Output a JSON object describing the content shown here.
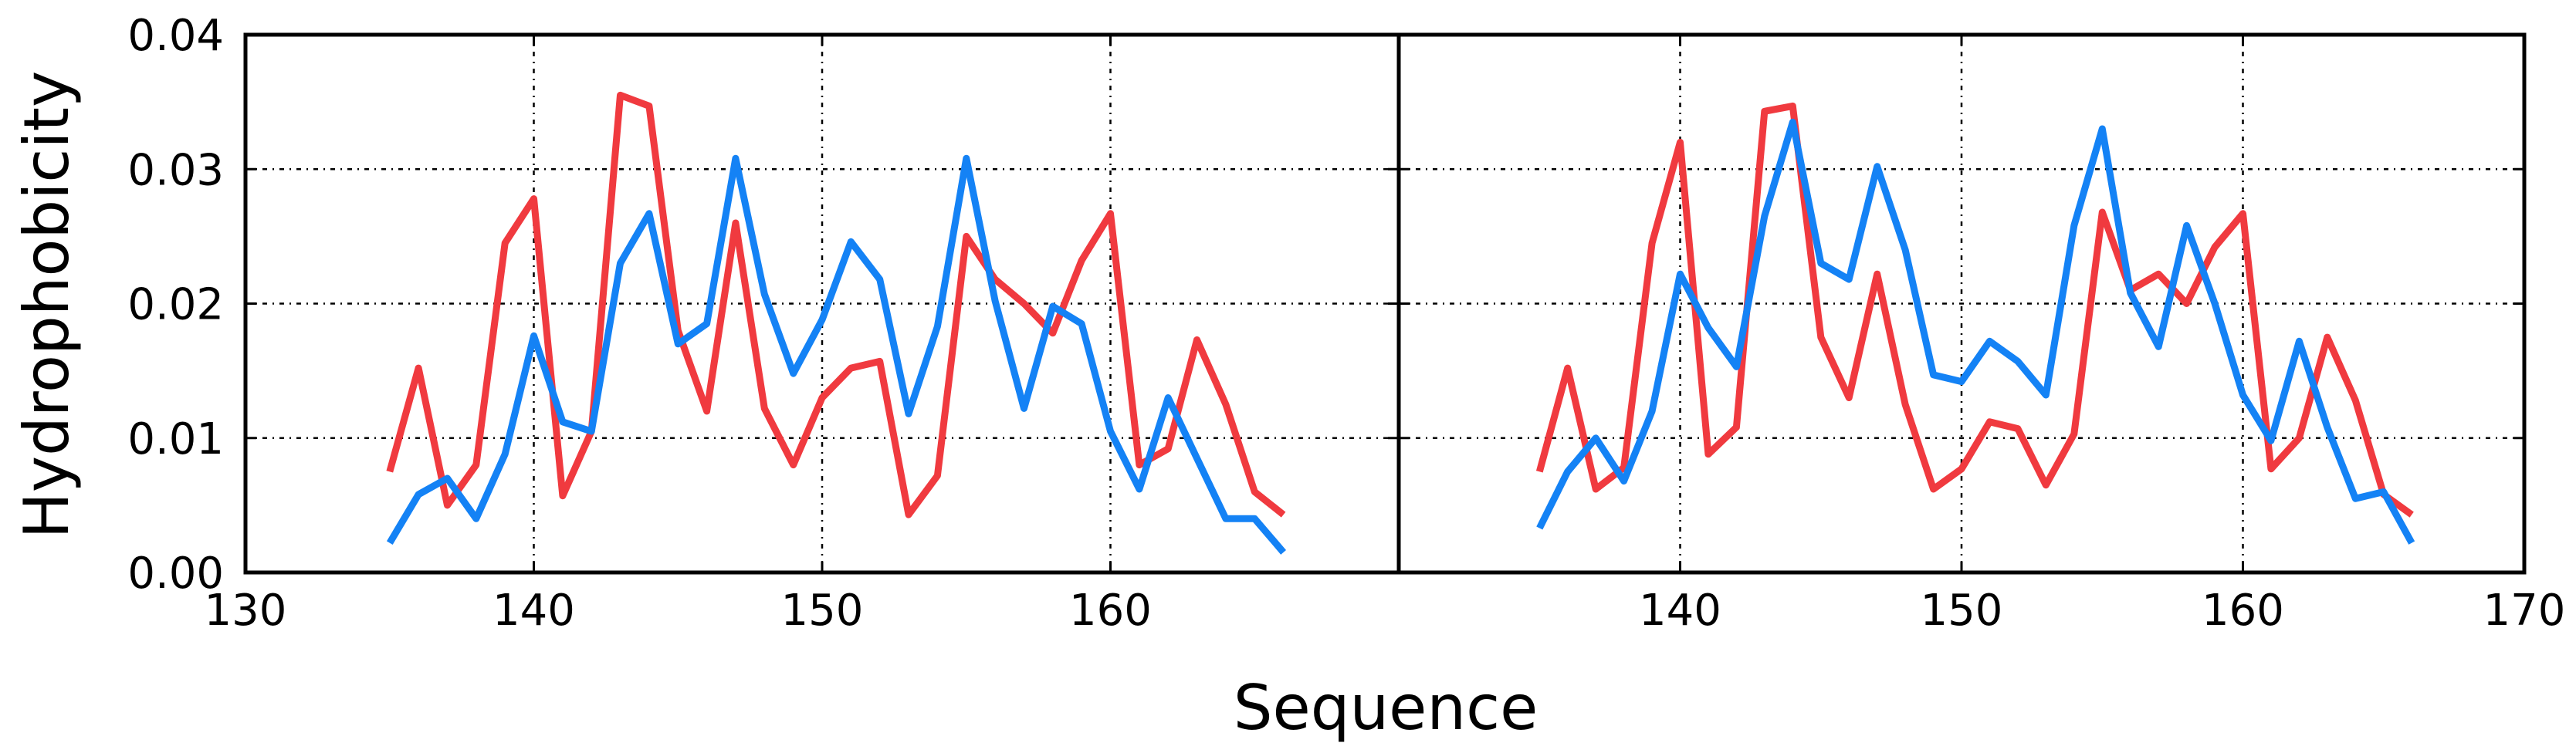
{
  "chart_data": {
    "type": "line",
    "xlabel": "Sequence",
    "ylabel": "Hydrophobicity",
    "ylim": [
      0,
      0.04
    ],
    "yticks": [
      "0.00",
      "0.01",
      "0.02",
      "0.03",
      "0.04"
    ],
    "grid": true,
    "panels": [
      {
        "xlim": [
          130,
          170
        ],
        "xticks": [
          "130",
          "140",
          "150",
          "160"
        ],
        "series": [
          {
            "color": "#f03a3f",
            "x": [
              135,
              136,
              137,
              138,
              139,
              140,
              141,
              142,
              143,
              144,
              145,
              146,
              147,
              148,
              149,
              150,
              151,
              152,
              153,
              154,
              155,
              156,
              157,
              158,
              159,
              160,
              161,
              162,
              163,
              164,
              165,
              166
            ],
            "y": [
              0.0075,
              0.0152,
              0.005,
              0.008,
              0.0245,
              0.0278,
              0.0057,
              0.0105,
              0.0355,
              0.0347,
              0.018,
              0.012,
              0.026,
              0.0122,
              0.008,
              0.013,
              0.0152,
              0.0157,
              0.0043,
              0.0072,
              0.025,
              0.0218,
              0.02,
              0.0178,
              0.0232,
              0.0267,
              0.008,
              0.0092,
              0.0173,
              0.0125,
              0.006,
              0.0043
            ]
          },
          {
            "color": "#1482f5",
            "x": [
              135,
              136,
              137,
              138,
              139,
              140,
              141,
              142,
              143,
              144,
              145,
              146,
              147,
              148,
              149,
              150,
              151,
              152,
              153,
              154,
              155,
              156,
              157,
              158,
              159,
              160,
              161,
              162,
              163,
              164,
              165,
              166
            ],
            "y": [
              0.0022,
              0.0058,
              0.007,
              0.004,
              0.0088,
              0.0176,
              0.0112,
              0.0105,
              0.023,
              0.0267,
              0.017,
              0.0185,
              0.0308,
              0.0207,
              0.0148,
              0.0188,
              0.0246,
              0.0218,
              0.0118,
              0.0183,
              0.0308,
              0.0202,
              0.0122,
              0.0198,
              0.0185,
              0.0105,
              0.0062,
              0.013,
              0.0085,
              0.004,
              0.004,
              0.0015
            ]
          }
        ]
      },
      {
        "xlim": [
          130,
          170
        ],
        "xticks": [
          "140",
          "150",
          "160",
          "170"
        ],
        "series": [
          {
            "color": "#f03a3f",
            "x": [
              135,
              136,
              137,
              138,
              139,
              140,
              141,
              142,
              143,
              144,
              145,
              146,
              147,
              148,
              149,
              150,
              151,
              152,
              153,
              154,
              155,
              156,
              157,
              158,
              159,
              160,
              161,
              162,
              163,
              164,
              165,
              166
            ],
            "y": [
              0.0075,
              0.0152,
              0.0062,
              0.0078,
              0.0245,
              0.032,
              0.0088,
              0.0108,
              0.0343,
              0.0347,
              0.0175,
              0.013,
              0.0222,
              0.0125,
              0.0062,
              0.0077,
              0.0112,
              0.0107,
              0.0065,
              0.0103,
              0.0268,
              0.021,
              0.0222,
              0.02,
              0.0242,
              0.0267,
              0.0077,
              0.01,
              0.0175,
              0.0128,
              0.0058,
              0.0043
            ]
          },
          {
            "color": "#1482f5",
            "x": [
              135,
              136,
              137,
              138,
              139,
              140,
              141,
              142,
              143,
              144,
              145,
              146,
              147,
              148,
              149,
              150,
              151,
              152,
              153,
              154,
              155,
              156,
              157,
              158,
              159,
              160,
              161,
              162,
              163,
              164,
              165,
              166
            ],
            "y": [
              0.0033,
              0.0075,
              0.01,
              0.0068,
              0.012,
              0.0222,
              0.0182,
              0.0153,
              0.0265,
              0.0335,
              0.023,
              0.0218,
              0.0302,
              0.024,
              0.0147,
              0.0142,
              0.0172,
              0.0157,
              0.0132,
              0.0258,
              0.033,
              0.0208,
              0.0168,
              0.0258,
              0.02,
              0.0132,
              0.0098,
              0.0172,
              0.0108,
              0.0055,
              0.006,
              0.0022
            ]
          }
        ]
      }
    ]
  }
}
